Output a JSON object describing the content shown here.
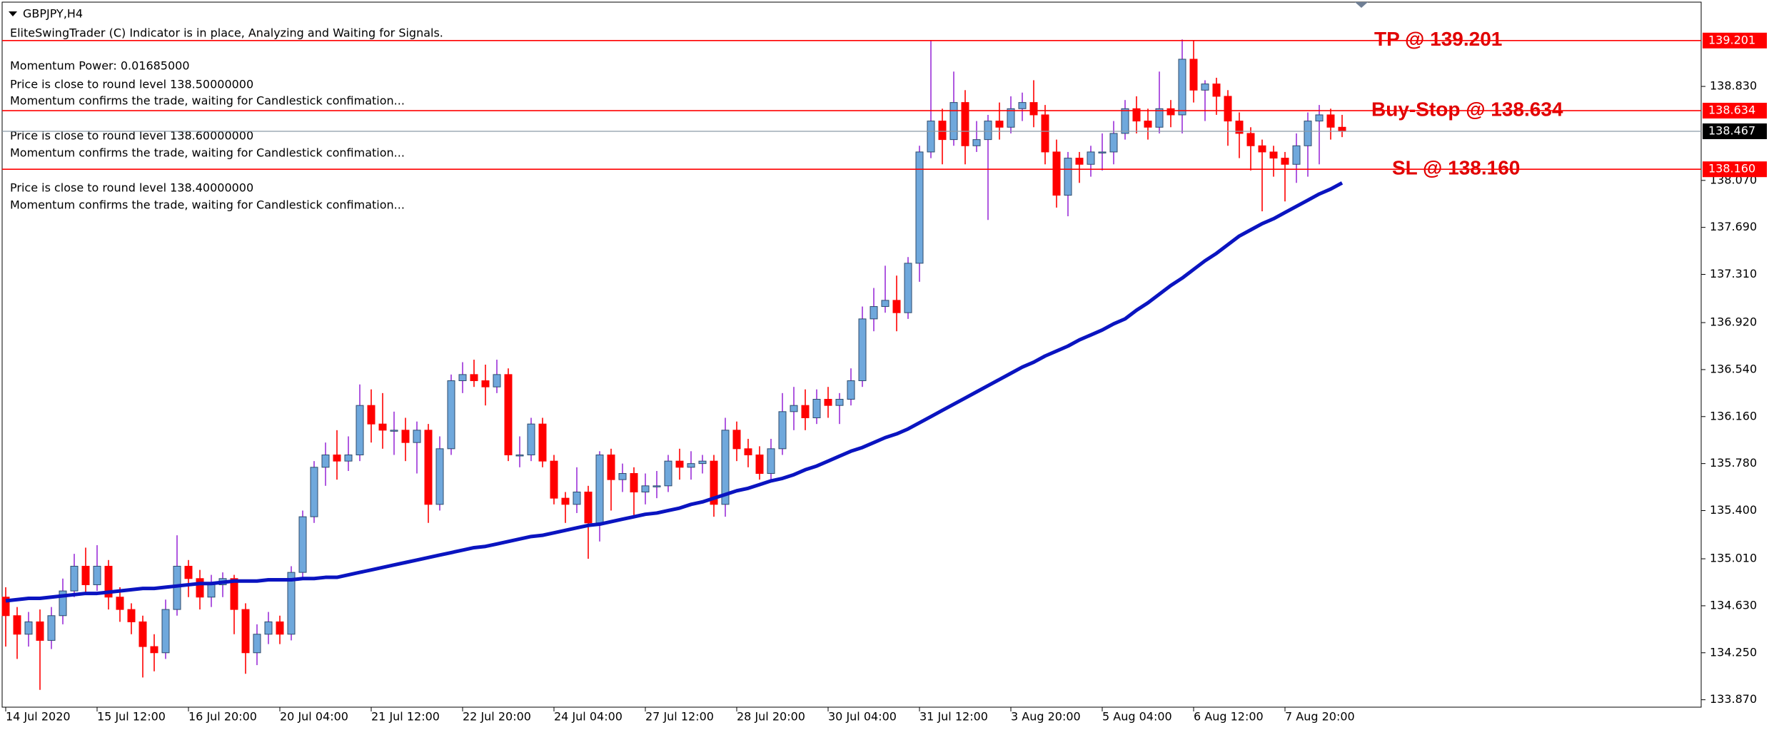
{
  "chart_data": {
    "type": "candlestick",
    "symbol": "GBPJPY,H4",
    "info_lines": [
      "EliteSwingTrader (C) Indicator is in place, Analyzing and Waiting for Signals.",
      "Momentum Power: 0.01685000",
      "Price is close to round level 138.50000000",
      "Momentum confirms the trade, waiting for Candlestick confimation...",
      "Price is close to round level 138.60000000",
      "Momentum confirms the trade, waiting for Candlestick confimation...",
      "Price is close to round level 138.40000000",
      "Momentum confirms the trade, waiting for Candlestick confimation..."
    ],
    "up_color": "#6fa8dc",
    "up_wick_color": "#9b30d9",
    "down_color": "#ff0000",
    "ma_color": "#0a14c0",
    "level_color": "#ff0000",
    "current_color": "#000000",
    "ylim": [
      133.81,
      139.5
    ],
    "yticks": [
      {
        "value": 138.83,
        "label": "138.830"
      },
      {
        "value": 138.07,
        "label": "138.070"
      },
      {
        "value": 137.69,
        "label": "137.690"
      },
      {
        "value": 137.31,
        "label": "137.310"
      },
      {
        "value": 136.92,
        "label": "136.920"
      },
      {
        "value": 136.54,
        "label": "136.540"
      },
      {
        "value": 136.16,
        "label": "136.160"
      },
      {
        "value": 135.78,
        "label": "135.780"
      },
      {
        "value": 135.4,
        "label": "135.400"
      },
      {
        "value": 135.01,
        "label": "135.010"
      },
      {
        "value": 134.63,
        "label": "134.630"
      },
      {
        "value": 134.25,
        "label": "134.250"
      },
      {
        "value": 133.87,
        "label": "133.870"
      }
    ],
    "levels": [
      {
        "label": "TP @ 139.201",
        "value": 139.201,
        "tag": "139.201"
      },
      {
        "label": "Buy-Stop @ 138.634",
        "value": 138.634,
        "tag": "138.634"
      },
      {
        "label": "SL @ 138.160",
        "value": 138.16,
        "tag": "138.160"
      }
    ],
    "current_price": 138.467,
    "categories": [
      "14 Jul 2020",
      null,
      null,
      null,
      null,
      null,
      null,
      null,
      "15 Jul 12:00",
      null,
      null,
      null,
      null,
      null,
      null,
      null,
      "16 Jul 20:00",
      null,
      null,
      null,
      null,
      null,
      null,
      null,
      "20 Jul 04:00",
      null,
      null,
      null,
      null,
      null,
      null,
      null,
      "21 Jul 12:00",
      null,
      null,
      null,
      null,
      null,
      null,
      null,
      "22 Jul 20:00",
      null,
      null,
      null,
      null,
      null,
      null,
      null,
      "24 Jul 04:00",
      null,
      null,
      null,
      null,
      null,
      null,
      null,
      "27 Jul 12:00",
      null,
      null,
      null,
      null,
      null,
      null,
      null,
      "28 Jul 20:00",
      null,
      null,
      null,
      null,
      null,
      null,
      null,
      "30 Jul 04:00",
      null,
      null,
      null,
      null,
      null,
      null,
      null,
      "31 Jul 12:00",
      null,
      null,
      null,
      null,
      null,
      null,
      null,
      "3 Aug 20:00",
      null,
      null,
      null,
      null,
      null,
      null,
      null,
      "5 Aug 04:00",
      null,
      null,
      null,
      null,
      null,
      null,
      null,
      "6 Aug 12:00",
      null,
      null,
      null,
      null,
      null,
      null,
      null,
      "7 Aug 20:00",
      null,
      null,
      null,
      null,
      null
    ],
    "candles": [
      [
        134.7,
        134.78,
        134.3,
        134.55
      ],
      [
        134.55,
        134.62,
        134.2,
        134.4
      ],
      [
        134.4,
        134.58,
        134.3,
        134.5
      ],
      [
        134.5,
        134.6,
        133.95,
        134.35
      ],
      [
        134.35,
        134.62,
        134.28,
        134.55
      ],
      [
        134.55,
        134.85,
        134.48,
        134.75
      ],
      [
        134.75,
        135.05,
        134.7,
        134.95
      ],
      [
        134.95,
        135.1,
        134.72,
        134.8
      ],
      [
        134.8,
        135.12,
        134.75,
        134.95
      ],
      [
        134.95,
        135.0,
        134.6,
        134.7
      ],
      [
        134.7,
        134.78,
        134.5,
        134.6
      ],
      [
        134.6,
        134.65,
        134.4,
        134.5
      ],
      [
        134.5,
        134.55,
        134.05,
        134.3
      ],
      [
        134.3,
        134.4,
        134.1,
        134.25
      ],
      [
        134.25,
        134.68,
        134.2,
        134.6
      ],
      [
        134.6,
        135.2,
        134.55,
        134.95
      ],
      [
        134.95,
        135.0,
        134.7,
        134.85
      ],
      [
        134.85,
        134.92,
        134.6,
        134.7
      ],
      [
        134.7,
        134.88,
        134.62,
        134.8
      ],
      [
        134.8,
        134.9,
        134.7,
        134.85
      ],
      [
        134.85,
        134.88,
        134.4,
        134.6
      ],
      [
        134.6,
        134.65,
        134.08,
        134.25
      ],
      [
        134.25,
        134.48,
        134.15,
        134.4
      ],
      [
        134.4,
        134.58,
        134.32,
        134.5
      ],
      [
        134.5,
        134.55,
        134.32,
        134.4
      ],
      [
        134.4,
        134.95,
        134.35,
        134.9
      ],
      [
        134.9,
        135.4,
        134.85,
        135.35
      ],
      [
        135.35,
        135.8,
        135.3,
        135.75
      ],
      [
        135.75,
        135.95,
        135.6,
        135.85
      ],
      [
        135.85,
        136.05,
        135.65,
        135.8
      ],
      [
        135.8,
        136.0,
        135.72,
        135.85
      ],
      [
        135.85,
        136.42,
        135.8,
        136.25
      ],
      [
        136.25,
        136.38,
        135.95,
        136.1
      ],
      [
        136.1,
        136.35,
        135.9,
        136.05
      ],
      [
        136.05,
        136.2,
        135.85,
        136.05
      ],
      [
        136.05,
        136.15,
        135.8,
        135.95
      ],
      [
        135.95,
        136.12,
        135.7,
        136.05
      ],
      [
        136.05,
        136.1,
        135.3,
        135.45
      ],
      [
        135.45,
        136.0,
        135.4,
        135.9
      ],
      [
        135.9,
        136.5,
        135.85,
        136.45
      ],
      [
        136.45,
        136.6,
        136.35,
        136.5
      ],
      [
        136.5,
        136.62,
        136.4,
        136.45
      ],
      [
        136.45,
        136.58,
        136.25,
        136.4
      ],
      [
        136.4,
        136.62,
        136.35,
        136.5
      ],
      [
        136.5,
        136.55,
        135.8,
        135.85
      ],
      [
        135.85,
        136.0,
        135.75,
        135.85
      ],
      [
        135.85,
        136.15,
        135.8,
        136.1
      ],
      [
        136.1,
        136.15,
        135.75,
        135.8
      ],
      [
        135.8,
        135.85,
        135.45,
        135.5
      ],
      [
        135.5,
        135.55,
        135.3,
        135.45
      ],
      [
        135.45,
        135.75,
        135.38,
        135.55
      ],
      [
        135.55,
        135.6,
        135.01,
        135.3
      ],
      [
        135.3,
        135.88,
        135.15,
        135.85
      ],
      [
        135.85,
        135.9,
        135.4,
        135.65
      ],
      [
        135.65,
        135.78,
        135.55,
        135.7
      ],
      [
        135.7,
        135.75,
        135.35,
        135.55
      ],
      [
        135.55,
        135.7,
        135.45,
        135.6
      ],
      [
        135.6,
        135.72,
        135.5,
        135.6
      ],
      [
        135.6,
        135.85,
        135.55,
        135.8
      ],
      [
        135.8,
        135.9,
        135.65,
        135.75
      ],
      [
        135.75,
        135.88,
        135.65,
        135.78
      ],
      [
        135.78,
        135.85,
        135.7,
        135.8
      ],
      [
        135.8,
        135.85,
        135.35,
        135.45
      ],
      [
        135.45,
        136.15,
        135.35,
        136.05
      ],
      [
        136.05,
        136.12,
        135.8,
        135.9
      ],
      [
        135.9,
        135.98,
        135.75,
        135.85
      ],
      [
        135.85,
        135.92,
        135.65,
        135.7
      ],
      [
        135.7,
        135.98,
        135.65,
        135.9
      ],
      [
        135.9,
        136.35,
        135.85,
        136.2
      ],
      [
        136.2,
        136.4,
        136.05,
        136.25
      ],
      [
        136.25,
        136.38,
        136.05,
        136.15
      ],
      [
        136.15,
        136.38,
        136.1,
        136.3
      ],
      [
        136.3,
        136.4,
        136.15,
        136.25
      ],
      [
        136.25,
        136.35,
        136.1,
        136.3
      ],
      [
        136.3,
        136.55,
        136.25,
        136.45
      ],
      [
        136.45,
        137.05,
        136.4,
        136.95
      ],
      [
        136.95,
        137.2,
        136.85,
        137.05
      ],
      [
        137.05,
        137.38,
        137.0,
        137.1
      ],
      [
        137.1,
        137.3,
        136.85,
        137.0
      ],
      [
        137.0,
        137.45,
        136.95,
        137.4
      ],
      [
        137.4,
        138.35,
        137.25,
        138.3
      ],
      [
        138.3,
        139.2,
        138.25,
        138.55
      ],
      [
        138.55,
        138.65,
        138.2,
        138.4
      ],
      [
        138.4,
        138.95,
        138.35,
        138.7
      ],
      [
        138.7,
        138.8,
        138.2,
        138.35
      ],
      [
        138.35,
        138.55,
        138.3,
        138.4
      ],
      [
        138.4,
        138.6,
        137.75,
        138.55
      ],
      [
        138.55,
        138.7,
        138.4,
        138.5
      ],
      [
        138.5,
        138.75,
        138.45,
        138.65
      ],
      [
        138.65,
        138.78,
        138.55,
        138.7
      ],
      [
        138.7,
        138.88,
        138.5,
        138.6
      ],
      [
        138.6,
        138.68,
        138.2,
        138.3
      ],
      [
        138.3,
        138.4,
        137.85,
        137.95
      ],
      [
        137.95,
        138.3,
        137.78,
        138.25
      ],
      [
        138.25,
        138.3,
        138.05,
        138.2
      ],
      [
        138.2,
        138.35,
        138.1,
        138.3
      ],
      [
        138.3,
        138.45,
        138.15,
        138.3
      ],
      [
        138.3,
        138.55,
        138.2,
        138.45
      ],
      [
        138.45,
        138.72,
        138.4,
        138.65
      ],
      [
        138.65,
        138.75,
        138.45,
        138.55
      ],
      [
        138.55,
        138.65,
        138.4,
        138.5
      ],
      [
        138.5,
        138.95,
        138.45,
        138.65
      ],
      [
        138.65,
        138.72,
        138.5,
        138.6
      ],
      [
        138.6,
        139.21,
        138.45,
        139.05
      ],
      [
        139.05,
        139.2,
        138.7,
        138.8
      ],
      [
        138.8,
        138.88,
        138.55,
        138.85
      ],
      [
        138.85,
        138.9,
        138.6,
        138.75
      ],
      [
        138.75,
        138.8,
        138.35,
        138.55
      ],
      [
        138.55,
        138.62,
        138.25,
        138.45
      ],
      [
        138.45,
        138.5,
        138.15,
        138.35
      ],
      [
        138.35,
        138.4,
        137.82,
        138.3
      ],
      [
        138.3,
        138.35,
        138.1,
        138.25
      ],
      [
        138.25,
        138.3,
        137.9,
        138.2
      ],
      [
        138.2,
        138.45,
        138.05,
        138.35
      ],
      [
        138.35,
        138.62,
        138.1,
        138.55
      ],
      [
        138.55,
        138.68,
        138.2,
        138.6
      ],
      [
        138.6,
        138.65,
        138.4,
        138.5
      ],
      [
        138.5,
        138.6,
        138.42,
        138.467
      ]
    ],
    "ma_values": [
      134.67,
      134.68,
      134.69,
      134.69,
      134.7,
      134.71,
      134.72,
      134.73,
      134.73,
      134.74,
      134.75,
      134.76,
      134.77,
      134.77,
      134.78,
      134.79,
      134.8,
      134.81,
      134.81,
      134.82,
      134.83,
      134.83,
      134.83,
      134.84,
      134.84,
      134.84,
      134.85,
      134.85,
      134.86,
      134.86,
      134.88,
      134.9,
      134.92,
      134.94,
      134.96,
      134.98,
      135.0,
      135.02,
      135.04,
      135.06,
      135.08,
      135.1,
      135.11,
      135.13,
      135.15,
      135.17,
      135.19,
      135.2,
      135.22,
      135.24,
      135.26,
      135.28,
      135.29,
      135.31,
      135.33,
      135.35,
      135.37,
      135.38,
      135.4,
      135.42,
      135.45,
      135.47,
      135.5,
      135.53,
      135.56,
      135.58,
      135.61,
      135.64,
      135.66,
      135.69,
      135.73,
      135.76,
      135.8,
      135.84,
      135.88,
      135.91,
      135.95,
      135.99,
      136.02,
      136.06,
      136.11,
      136.16,
      136.21,
      136.26,
      136.31,
      136.36,
      136.41,
      136.46,
      136.51,
      136.56,
      136.6,
      136.65,
      136.69,
      136.73,
      136.78,
      136.82,
      136.86,
      136.91,
      136.95,
      137.02,
      137.08,
      137.15,
      137.22,
      137.28,
      137.35,
      137.42,
      137.48,
      137.55,
      137.62,
      137.67,
      137.72,
      137.76,
      137.81,
      137.86,
      137.91,
      137.96,
      138.0,
      138.05
    ]
  }
}
